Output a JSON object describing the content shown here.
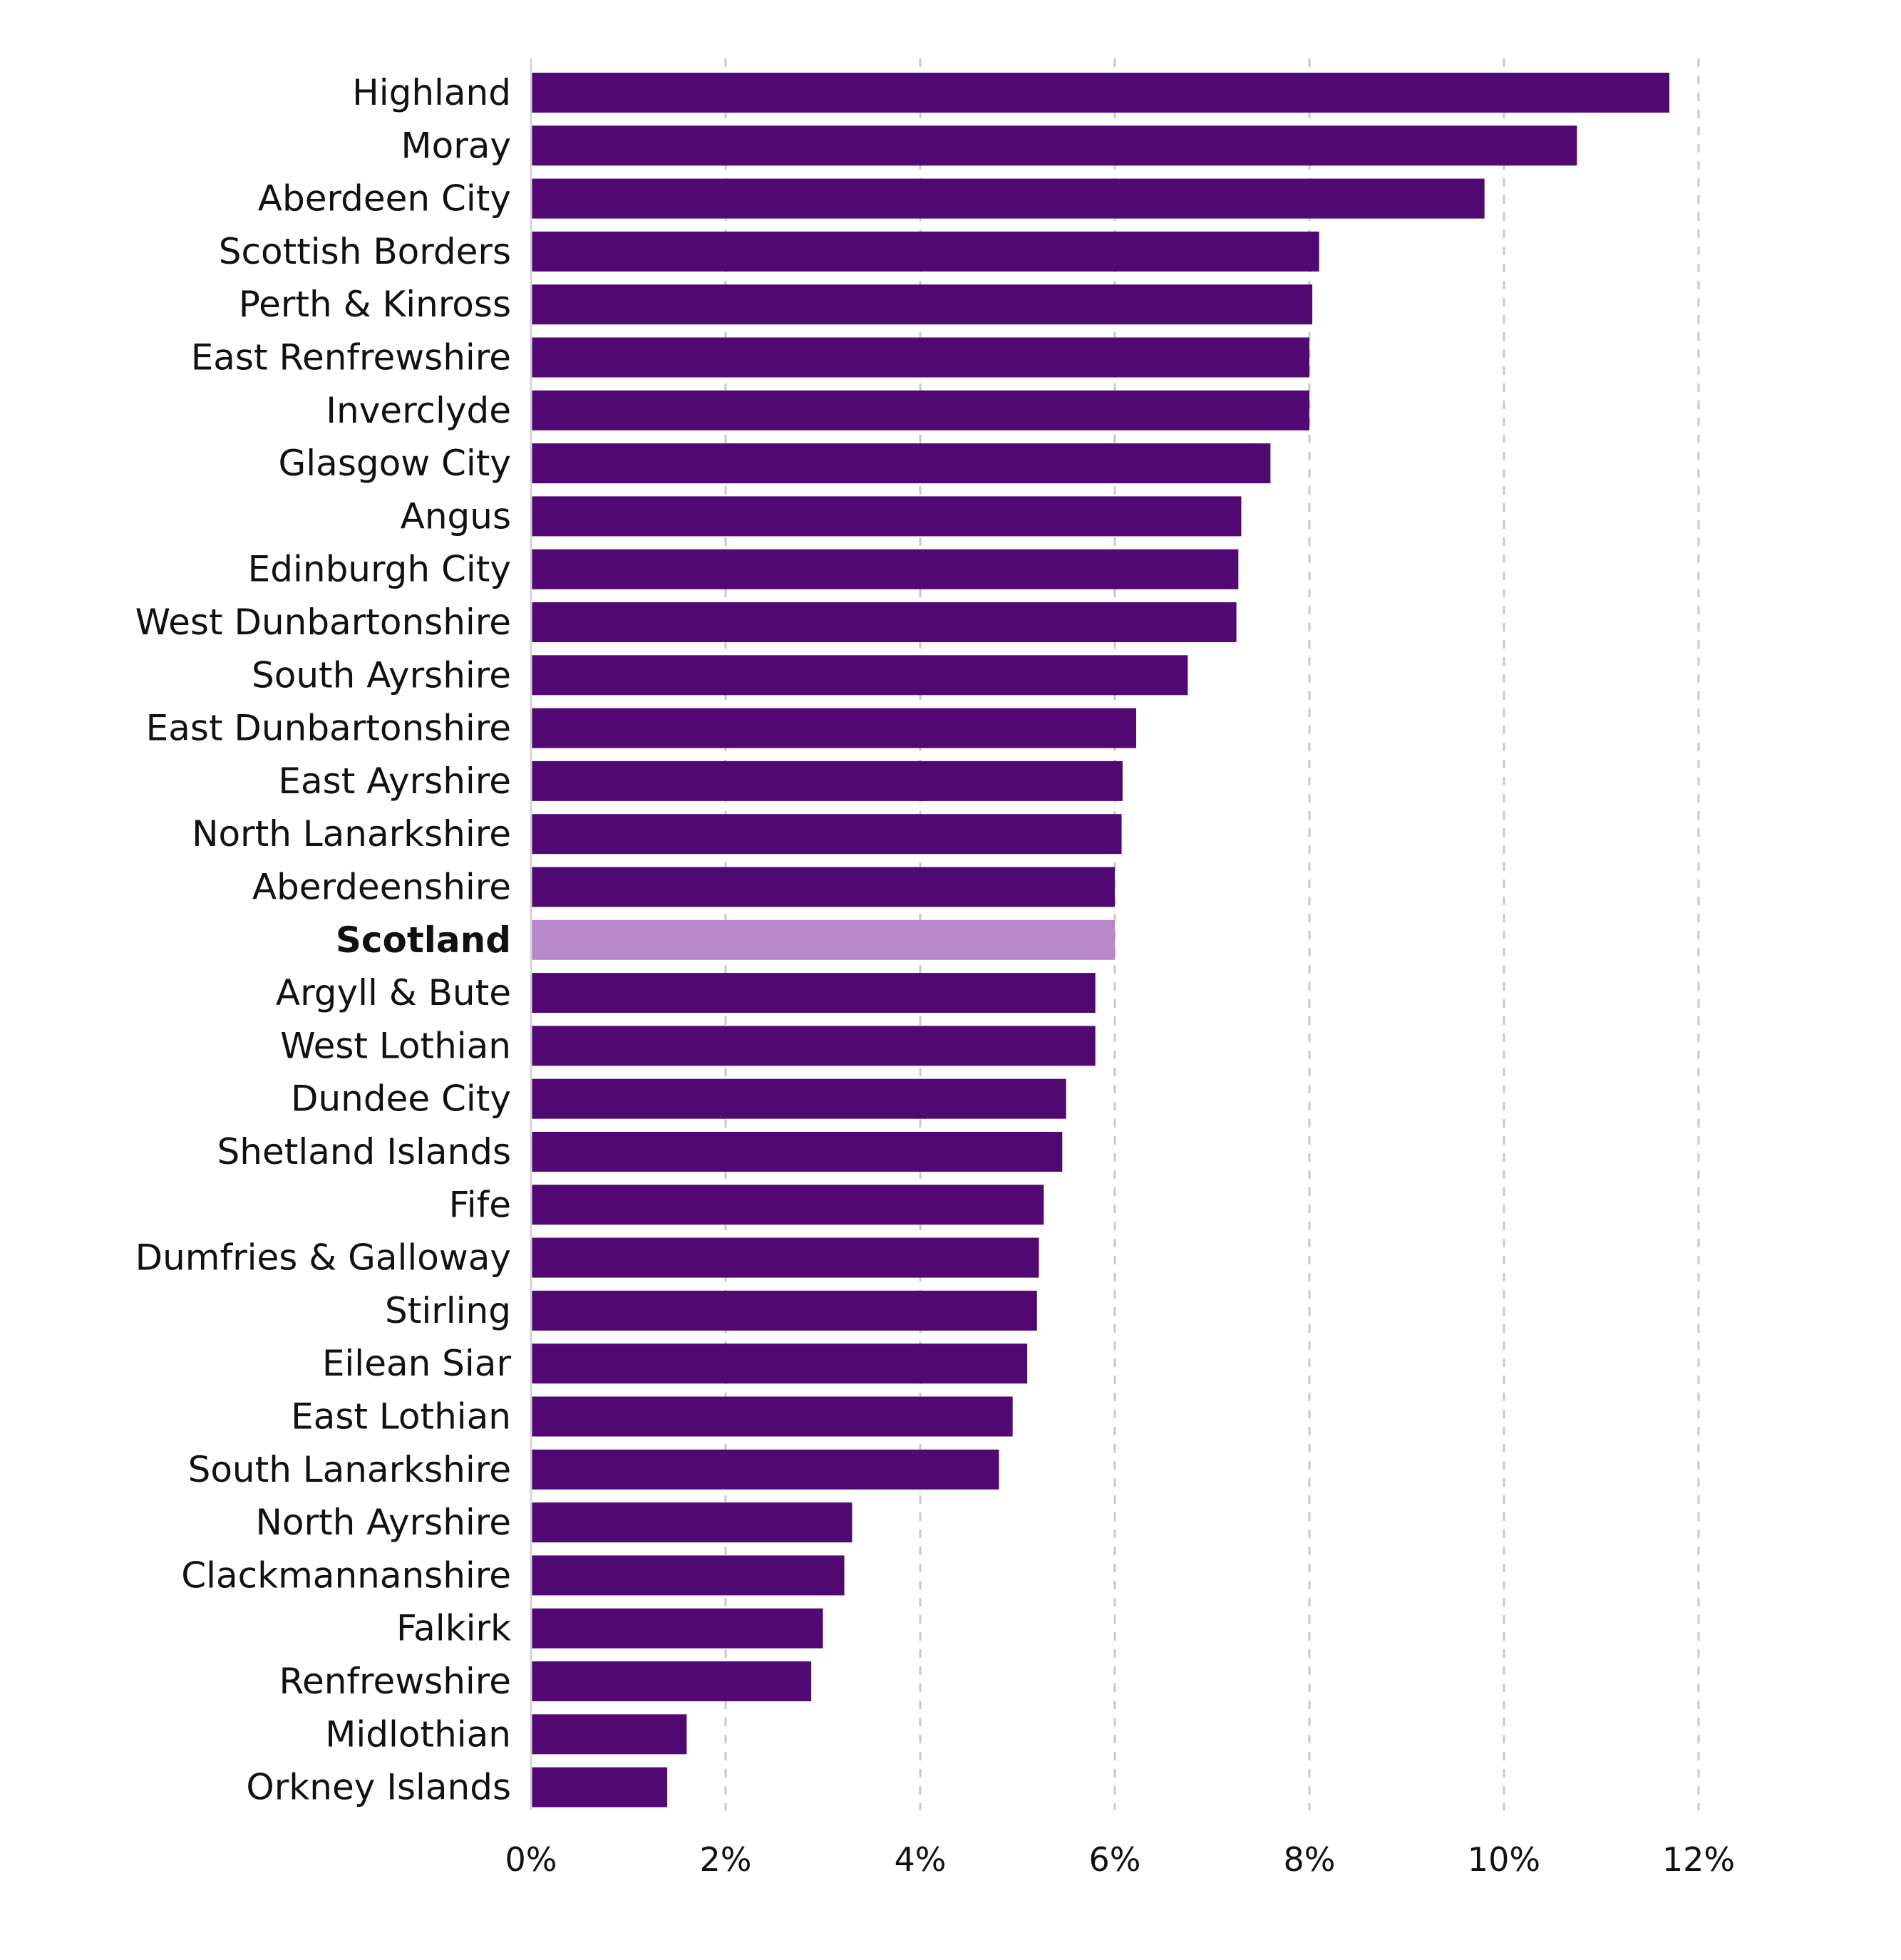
{
  "chart_data": {
    "type": "bar",
    "orientation": "horizontal",
    "title": "",
    "xlabel": "",
    "ylabel": "",
    "xlim": [
      0,
      12
    ],
    "x_ticks": [
      "0%",
      "2%",
      "4%",
      "6%",
      "8%",
      "10%",
      "12%"
    ],
    "grid": true,
    "legend": "none",
    "colors": {
      "bar": "#520872",
      "highlight": "#b886cb"
    },
    "highlight_category": "Scotland",
    "categories": [
      "Highland",
      "Moray",
      "Aberdeen City",
      "Scottish Borders",
      "Perth & Kinross",
      "East Renfrewshire",
      "Inverclyde",
      "Glasgow City",
      "Angus",
      "Edinburgh City",
      "West Dunbartonshire",
      "South Ayrshire",
      "East Dunbartonshire",
      "East Ayrshire",
      "North Lanarkshire",
      "Aberdeenshire",
      "Scotland",
      "Argyll & Bute",
      "West Lothian",
      "Dundee City",
      "Shetland Islands",
      "Fife",
      "Dumfries & Galloway",
      "Stirling",
      "Eilean Siar",
      "East Lothian",
      "South Lanarkshire",
      "North Ayrshire",
      "Clackmannanshire",
      "Falkirk",
      "Renfrewshire",
      "Midlothian",
      "Orkney Islands"
    ],
    "values": [
      11.7,
      10.75,
      9.8,
      8.1,
      8.03,
      8.0,
      8.0,
      7.6,
      7.3,
      7.27,
      7.25,
      6.75,
      6.22,
      6.08,
      6.07,
      6.0,
      6.0,
      5.8,
      5.8,
      5.5,
      5.46,
      5.27,
      5.22,
      5.2,
      5.1,
      4.95,
      4.81,
      3.3,
      3.22,
      3.0,
      2.88,
      1.6,
      1.4
    ]
  }
}
